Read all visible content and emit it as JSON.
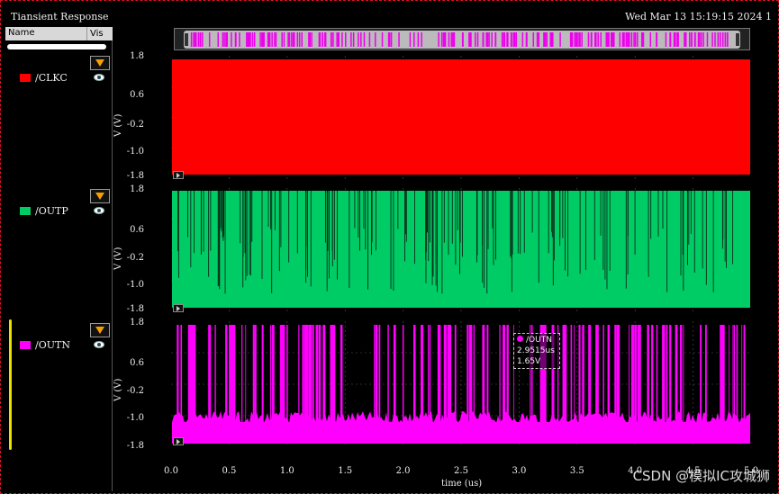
{
  "window": {
    "title": "Tiansient Response",
    "datetime": "Wed Mar 13 15:19:15 2024  1"
  },
  "legend": {
    "col_name": "Name",
    "col_vis": "Vis",
    "signals": [
      {
        "name": "/CLKC",
        "color": "#ff0000",
        "icon": "eye-icon"
      },
      {
        "name": "/OUTP",
        "color": "#00cc66",
        "icon": "eye-icon"
      },
      {
        "name": "/OUTN",
        "color": "#ff00ff",
        "icon": "eye-icon"
      }
    ]
  },
  "axes": {
    "ylabel": "V (V)",
    "yticks": [
      "1.8",
      "0.6",
      "-0.2",
      "-1.0",
      "-1.8"
    ],
    "xlabel": "time (us)",
    "xticks": [
      "0.0",
      "0.5",
      "1.0",
      "1.5",
      "2.0",
      "2.5",
      "3.0",
      "3.5",
      "4.0",
      "4.5",
      "5.0"
    ]
  },
  "marker": {
    "signal": "/OUTN",
    "time": "2.9515us",
    "value": "1.65V"
  },
  "watermark": "CSDN @模拟IC攻城狮",
  "chart_data": [
    {
      "type": "line",
      "series": [
        {
          "name": "/CLKC",
          "color": "#ff0000"
        }
      ],
      "xlabel": "time (us)",
      "ylabel": "V (V)",
      "xlim": [
        0,
        5
      ],
      "ylim": [
        -1.8,
        1.8
      ]
    },
    {
      "type": "line",
      "series": [
        {
          "name": "/OUTP",
          "color": "#00cc66"
        }
      ],
      "xlabel": "time (us)",
      "ylabel": "V (V)",
      "xlim": [
        0,
        5
      ],
      "ylim": [
        -1.8,
        1.8
      ]
    },
    {
      "type": "line",
      "series": [
        {
          "name": "/OUTN",
          "color": "#ff00ff"
        }
      ],
      "xlabel": "time (us)",
      "ylabel": "V (V)",
      "xlim": [
        0,
        5
      ],
      "ylim": [
        -1.8,
        1.8
      ]
    }
  ]
}
